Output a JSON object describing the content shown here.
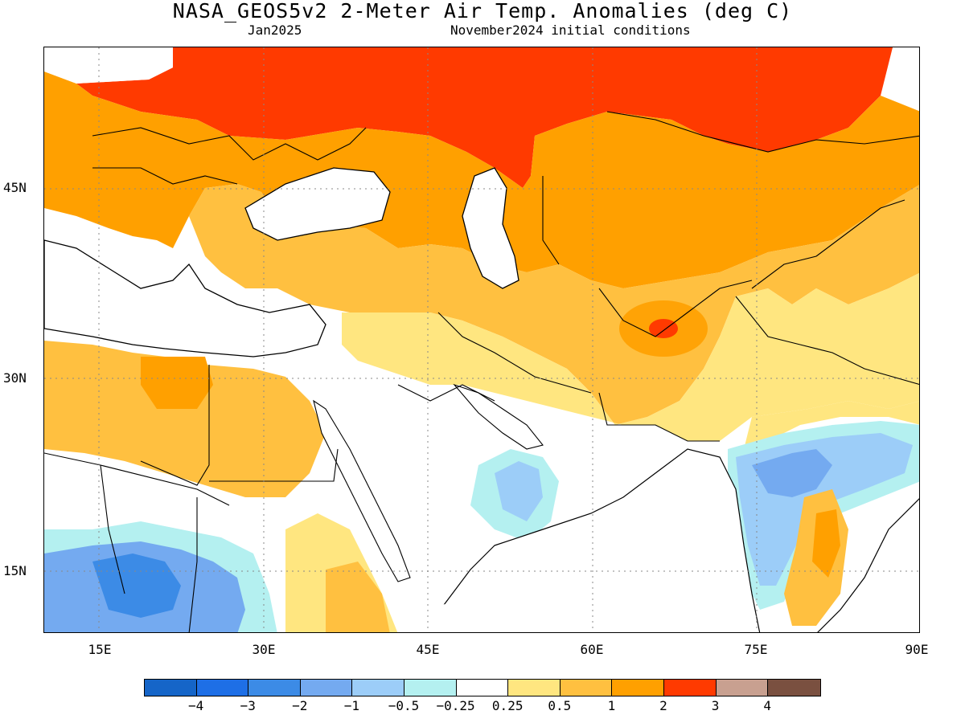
{
  "title": "NASA_GEOS5v2 2-Meter Air Temp. Anomalies (deg C)",
  "subtitle_left": "Jan2025",
  "subtitle_right": "November2024 initial conditions",
  "map": {
    "lon_range": [
      10,
      90
    ],
    "lat_range": [
      10,
      55
    ],
    "lon_ticks": [
      {
        "value": 15,
        "label": "15E"
      },
      {
        "value": 30,
        "label": "30E"
      },
      {
        "value": 45,
        "label": "45E"
      },
      {
        "value": 60,
        "label": "60E"
      },
      {
        "value": 75,
        "label": "75E"
      },
      {
        "value": 90,
        "label": "90E"
      }
    ],
    "lat_ticks": [
      {
        "value": 45,
        "label": "45N"
      },
      {
        "value": 30,
        "label": "30N"
      },
      {
        "value": 15,
        "label": "15N"
      }
    ],
    "gridlines": "dotted"
  },
  "colorbar": {
    "colors": [
      "#1565c8",
      "#1e6fe6",
      "#3c8be6",
      "#74aaf0",
      "#9ccdf8",
      "#b4f0f0",
      "#ffffff",
      "#ffe680",
      "#ffc040",
      "#ffa000",
      "#ff3a00",
      "#c8a090",
      "#7a5040"
    ],
    "labels": [
      {
        "text": "-4",
        "index": 1
      },
      {
        "text": "-3",
        "index": 2
      },
      {
        "text": "-2",
        "index": 3
      },
      {
        "text": "-1",
        "index": 4
      },
      {
        "text": "-0.5",
        "index": 5
      },
      {
        "text": "-0.25",
        "index": 6
      },
      {
        "text": "0.25",
        "index": 7
      },
      {
        "text": "0.5",
        "index": 8
      },
      {
        "text": "1",
        "index": 9
      },
      {
        "text": "2",
        "index": 10
      },
      {
        "text": "3",
        "index": 11
      },
      {
        "text": "4",
        "index": 12
      }
    ]
  }
}
